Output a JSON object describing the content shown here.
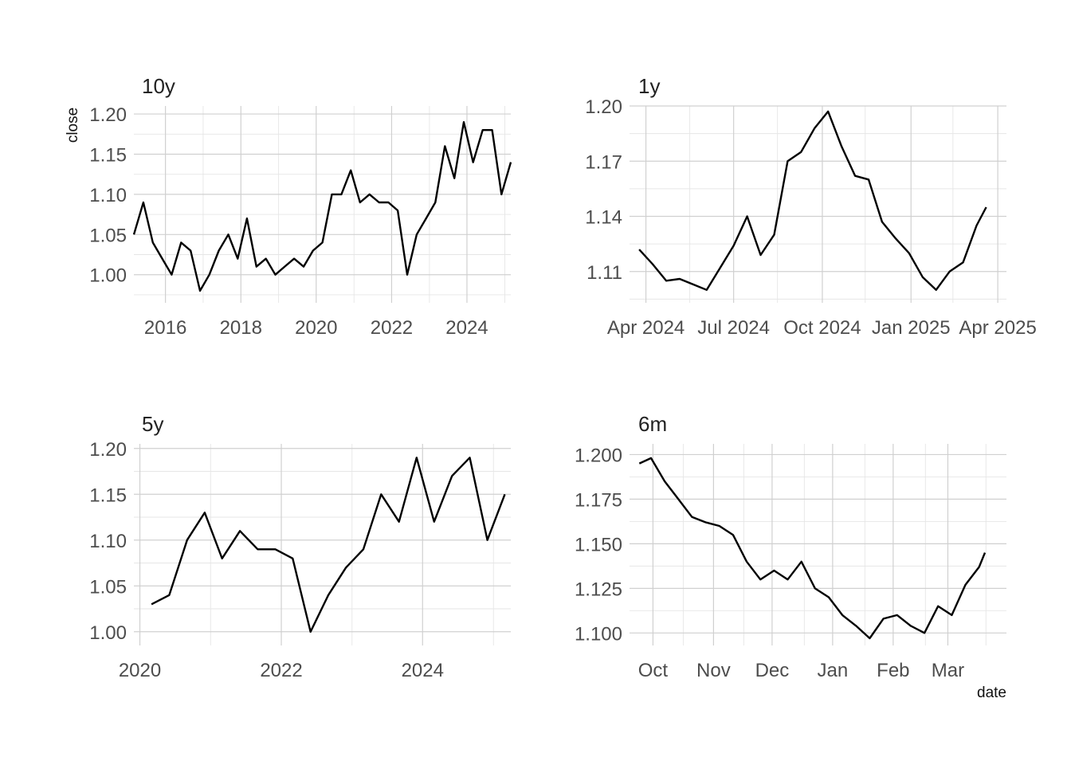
{
  "axis_labels": {
    "y": "close",
    "x": "date"
  },
  "chart_data": [
    {
      "type": "line",
      "title": "10y",
      "ylabel": "close",
      "xlabel": "",
      "x_ticks": [
        "2016",
        "2018",
        "2020",
        "2022",
        "2024"
      ],
      "y_ticks": [
        "1.00",
        "1.05",
        "1.10",
        "1.15",
        "1.20"
      ],
      "xlim": [
        "2015-03",
        "2025-03"
      ],
      "ylim": [
        0.965,
        1.21
      ],
      "grid": true,
      "series": [
        {
          "x": [
            "2015-03",
            "2015-06",
            "2015-09",
            "2015-12",
            "2016-03",
            "2016-06",
            "2016-09",
            "2016-12",
            "2017-03",
            "2017-06",
            "2017-09",
            "2017-12",
            "2018-03",
            "2018-06",
            "2018-09",
            "2018-12",
            "2019-03",
            "2019-06",
            "2019-09",
            "2019-12",
            "2020-03",
            "2020-06",
            "2020-09",
            "2020-12",
            "2021-03",
            "2021-06",
            "2021-09",
            "2021-12",
            "2022-03",
            "2022-06",
            "2022-09",
            "2022-12",
            "2023-03",
            "2023-06",
            "2023-09",
            "2023-12",
            "2024-03",
            "2024-06",
            "2024-09",
            "2024-12",
            "2025-03"
          ],
          "y": [
            1.05,
            1.09,
            1.04,
            1.02,
            1.0,
            1.04,
            1.03,
            0.98,
            1.0,
            1.03,
            1.05,
            1.02,
            1.07,
            1.01,
            1.02,
            1.0,
            1.01,
            1.02,
            1.01,
            1.03,
            1.04,
            1.1,
            1.1,
            1.13,
            1.09,
            1.1,
            1.09,
            1.09,
            1.08,
            1.0,
            1.05,
            1.07,
            1.09,
            1.16,
            1.12,
            1.19,
            1.14,
            1.18,
            1.18,
            1.1,
            1.14
          ]
        }
      ]
    },
    {
      "type": "line",
      "title": "1y",
      "ylabel": "",
      "xlabel": "",
      "x_ticks": [
        "Apr 2024",
        "Jul 2024",
        "Oct 2024",
        "Jan 2025",
        "Apr 2025"
      ],
      "y_ticks": [
        "1.11",
        "1.14",
        "1.17",
        "1.20"
      ],
      "xlim": [
        "2024-03-15",
        "2025-04-10"
      ],
      "ylim": [
        1.093,
        1.2
      ],
      "grid": true,
      "series": [
        {
          "x": [
            "2024-03-25",
            "2024-04-08",
            "2024-04-22",
            "2024-05-06",
            "2024-05-20",
            "2024-06-03",
            "2024-06-17",
            "2024-07-01",
            "2024-07-15",
            "2024-07-29",
            "2024-08-12",
            "2024-08-26",
            "2024-09-09",
            "2024-09-23",
            "2024-10-07",
            "2024-10-21",
            "2024-11-04",
            "2024-11-18",
            "2024-12-02",
            "2024-12-16",
            "2024-12-30",
            "2025-01-13",
            "2025-01-27",
            "2025-02-10",
            "2025-02-24",
            "2025-03-10",
            "2025-03-20"
          ],
          "y": [
            1.122,
            1.114,
            1.105,
            1.106,
            1.103,
            1.1,
            1.112,
            1.124,
            1.14,
            1.119,
            1.13,
            1.17,
            1.175,
            1.188,
            1.197,
            1.178,
            1.162,
            1.16,
            1.137,
            1.128,
            1.12,
            1.107,
            1.1,
            1.11,
            1.115,
            1.135,
            1.145
          ]
        }
      ]
    },
    {
      "type": "line",
      "title": "5y",
      "ylabel": "",
      "xlabel": "",
      "x_ticks": [
        "2020",
        "2022",
        "2024"
      ],
      "y_ticks": [
        "1.00",
        "1.05",
        "1.10",
        "1.15",
        "1.20"
      ],
      "xlim": [
        "2019-12",
        "2025-04"
      ],
      "ylim": [
        0.985,
        1.205
      ],
      "grid": true,
      "series": [
        {
          "x": [
            "2020-03",
            "2020-06",
            "2020-09",
            "2020-12",
            "2021-03",
            "2021-06",
            "2021-09",
            "2021-12",
            "2022-03",
            "2022-06",
            "2022-09",
            "2022-12",
            "2023-03",
            "2023-06",
            "2023-09",
            "2023-12",
            "2024-03",
            "2024-06",
            "2024-09",
            "2024-12",
            "2025-03"
          ],
          "y": [
            1.03,
            1.04,
            1.1,
            1.13,
            1.08,
            1.11,
            1.09,
            1.09,
            1.08,
            1.0,
            1.04,
            1.07,
            1.09,
            1.15,
            1.12,
            1.19,
            1.12,
            1.17,
            1.19,
            1.1,
            1.15
          ]
        }
      ]
    },
    {
      "type": "line",
      "title": "6m",
      "ylabel": "",
      "xlabel": "date",
      "x_ticks": [
        "Oct",
        "Nov",
        "Dec",
        "Jan",
        "Feb",
        "Mar"
      ],
      "y_ticks": [
        "1.100",
        "1.125",
        "1.150",
        "1.175",
        "1.200"
      ],
      "xlim": [
        "2024-09-19",
        "2025-03-31"
      ],
      "ylim": [
        1.093,
        1.206
      ],
      "grid": true,
      "series": [
        {
          "x": [
            "2024-09-24",
            "2024-09-30",
            "2024-10-07",
            "2024-10-14",
            "2024-10-21",
            "2024-10-28",
            "2024-11-04",
            "2024-11-11",
            "2024-11-18",
            "2024-11-25",
            "2024-12-02",
            "2024-12-09",
            "2024-12-16",
            "2024-12-23",
            "2024-12-30",
            "2025-01-06",
            "2025-01-13",
            "2025-01-20",
            "2025-01-27",
            "2025-02-03",
            "2025-02-10",
            "2025-02-17",
            "2025-02-24",
            "2025-03-03",
            "2025-03-10",
            "2025-03-17",
            "2025-03-20"
          ],
          "y": [
            1.195,
            1.198,
            1.185,
            1.175,
            1.165,
            1.162,
            1.16,
            1.155,
            1.14,
            1.13,
            1.135,
            1.13,
            1.14,
            1.125,
            1.12,
            1.11,
            1.104,
            1.097,
            1.108,
            1.11,
            1.104,
            1.1,
            1.115,
            1.11,
            1.127,
            1.137,
            1.145
          ]
        }
      ]
    }
  ]
}
